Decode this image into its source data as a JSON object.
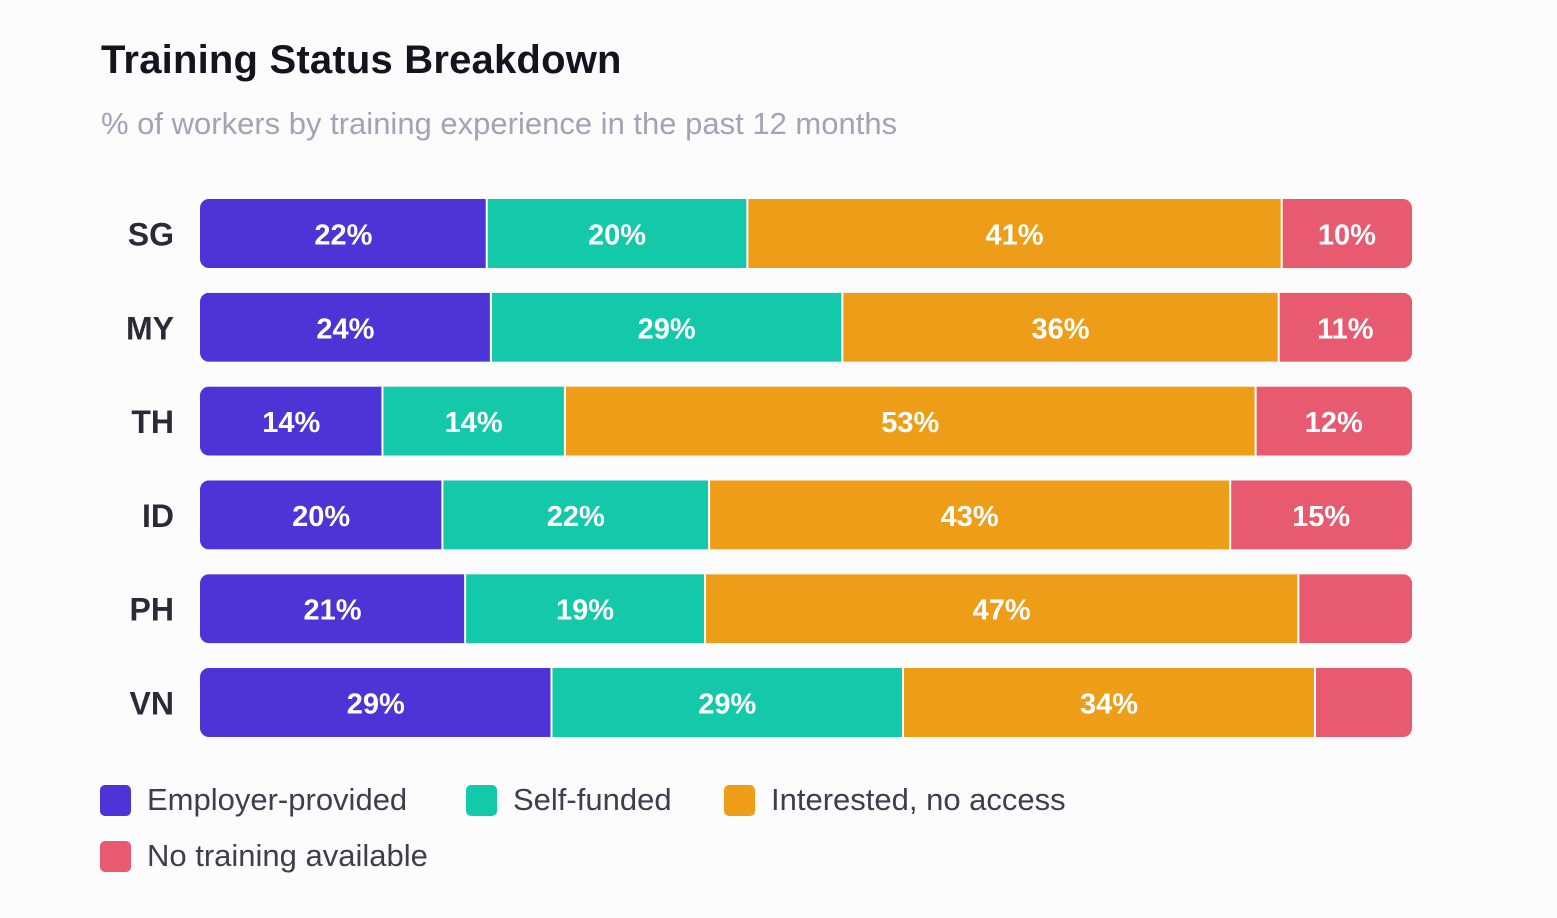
{
  "title": "Training Status Breakdown",
  "subtitle": "% of workers by training experience in the past 12 months",
  "chart_data": {
    "type": "bar",
    "orientation": "horizontal",
    "stacked": true,
    "categories": [
      "SG",
      "MY",
      "TH",
      "ID",
      "PH",
      "VN"
    ],
    "series": [
      {
        "name": "Employer-provided",
        "color": "#4d34d6",
        "values": [
          22,
          24,
          14,
          20,
          21,
          29
        ],
        "labels": [
          "22%",
          "24%",
          "14%",
          "20%",
          "21%",
          "29%"
        ]
      },
      {
        "name": "Self-funded",
        "color": "#14c8aa",
        "values": [
          20,
          29,
          14,
          22,
          19,
          29
        ],
        "labels": [
          "20%",
          "29%",
          "14%",
          "22%",
          "19%",
          "29%"
        ]
      },
      {
        "name": "Interested, no access",
        "color": "#ed9d18",
        "values": [
          41,
          36,
          53,
          43,
          47,
          34
        ],
        "labels": [
          "41%",
          "36%",
          "53%",
          "43%",
          "47%",
          "34%"
        ]
      },
      {
        "name": "No training available",
        "color": "#e75a70",
        "values": [
          10,
          11,
          12,
          15,
          9,
          8
        ],
        "labels": [
          "10%",
          "11%",
          "12%",
          "15%",
          "",
          ""
        ]
      }
    ],
    "legend_position": "bottom-left",
    "grid": false,
    "xlabel": "",
    "ylabel": ""
  }
}
